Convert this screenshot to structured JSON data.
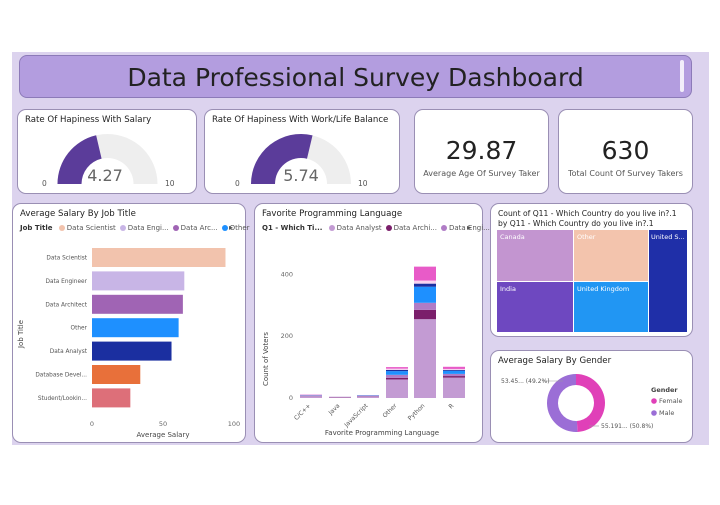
{
  "title": "Data Professional Survey Dashboard",
  "gauge_salary": {
    "title": "Rate Of Hapiness With Salary",
    "value_label": "4.27",
    "value": 4.27,
    "min": "0",
    "max": "10",
    "fill": "#5b3c9a"
  },
  "gauge_balance": {
    "title": "Rate Of Hapiness With Work/Life Balance",
    "value_label": "5.74",
    "value": 5.74,
    "min": "0",
    "max": "10",
    "fill": "#5b3c9a"
  },
  "kpi_age": {
    "value": "29.87",
    "caption": "Average Age Of Survey Taker"
  },
  "kpi_count": {
    "value": "630",
    "caption": "Total Count Of Survey Takers"
  },
  "salary_by_title": {
    "title": "Average Salary By Job Title",
    "legend_label": "Job Title",
    "legend_items": [
      {
        "name": "Data Scientist",
        "color": "#f2c3ad"
      },
      {
        "name": "Data Engi...",
        "color": "#c8b5e6"
      },
      {
        "name": "Data Arc...",
        "color": "#a064b4"
      },
      {
        "name": "Other",
        "color": "#1e90ff"
      }
    ],
    "legend_more": "▸",
    "ylabel": "Job Title",
    "xlabel": "Average Salary",
    "ticks": [
      "0",
      "50",
      "100"
    ]
  },
  "fav_lang": {
    "title": "Favorite Programming Language",
    "legend_label": "Q1 - Which Ti...",
    "legend_items": [
      {
        "name": "Data Analyst",
        "color": "#c39bd3"
      },
      {
        "name": "Data Archi...",
        "color": "#7b1f6b"
      },
      {
        "name": "Data Engi...",
        "color": "#b07cc6"
      }
    ],
    "legend_more": "▸",
    "ylabel": "Count of Voters",
    "xlabel": "Favorite Programming Language",
    "yticks": [
      "0",
      "200",
      "400"
    ]
  },
  "country": {
    "title_line1": "Count of Q11 - Which Country do you live in?.1",
    "title_line2": "by Q11 - Which Country do you live in?.1",
    "cells": [
      {
        "label": "Canada",
        "color": "#c395d0"
      },
      {
        "label": "Other",
        "color": "#f3c4ad"
      },
      {
        "label": "United S...",
        "color": "#1f2fa8"
      },
      {
        "label": "India",
        "color": "#6e48c0"
      },
      {
        "label": "United Kingdom",
        "color": "#2196f3"
      }
    ]
  },
  "gender": {
    "title": "Average Salary By Gender",
    "legend_title": "Gender",
    "slices": [
      {
        "name": "Female",
        "label": "53.45... (49.2%)",
        "percent": 49.2,
        "color": "#e040b8"
      },
      {
        "name": "Male",
        "label": "55.191... (50.8%)",
        "percent": 50.8,
        "color": "#9b6ed6"
      }
    ]
  },
  "chart_data": [
    {
      "type": "bar",
      "title": "Average Salary By Job Title",
      "xlabel": "Average Salary",
      "ylabel": "Job Title",
      "xlim": [
        0,
        100
      ],
      "categories": [
        "Data Scientist",
        "Data Engineer",
        "Data Architect",
        "Other",
        "Data Analyst",
        "Database Devel...",
        "Student/Lookin..."
      ],
      "values": [
        94,
        65,
        64,
        61,
        56,
        34,
        27
      ],
      "colors": [
        "#f2c3ad",
        "#c8b5e6",
        "#a064b4",
        "#1e90ff",
        "#1b2fa0",
        "#e8703a",
        "#dd6f79"
      ]
    },
    {
      "type": "bar",
      "stacked": true,
      "title": "Favorite Programming Language",
      "xlabel": "Favorite Programming Language",
      "ylabel": "Count of Voters",
      "ylim": [
        0,
        440
      ],
      "categories": [
        "C/C++",
        "Java",
        "JavaScript",
        "Other",
        "Python",
        "R"
      ],
      "series": [
        {
          "name": "Data Analyst",
          "color": "#c39bd3",
          "values": [
            6,
            2,
            5,
            60,
            255,
            66
          ]
        },
        {
          "name": "Data Archi...",
          "color": "#7b1f6b",
          "values": [
            1,
            1,
            1,
            5,
            30,
            5
          ]
        },
        {
          "name": "Data Engi...",
          "color": "#b07cc6",
          "values": [
            2,
            1,
            2,
            10,
            23,
            7
          ]
        },
        {
          "name": "Other",
          "color": "#1e90ff",
          "values": [
            1,
            0,
            1,
            12,
            52,
            10
          ]
        },
        {
          "series_color": "#1b2fa0",
          "name": "",
          "color": "#1b2fa0",
          "values": [
            0,
            0,
            0,
            4,
            10,
            3
          ]
        },
        {
          "name": "",
          "color": "#f9d2f0",
          "values": [
            0,
            0,
            0,
            4,
            10,
            3
          ]
        },
        {
          "name": "",
          "color": "#e85bc8",
          "values": [
            1,
            0,
            0,
            5,
            45,
            7
          ]
        }
      ]
    },
    {
      "type": "pie",
      "title": "Average Salary By Gender",
      "categories": [
        "Female",
        "Male"
      ],
      "values": [
        53.45,
        55.191
      ],
      "percents": [
        49.2,
        50.8
      ]
    }
  ]
}
